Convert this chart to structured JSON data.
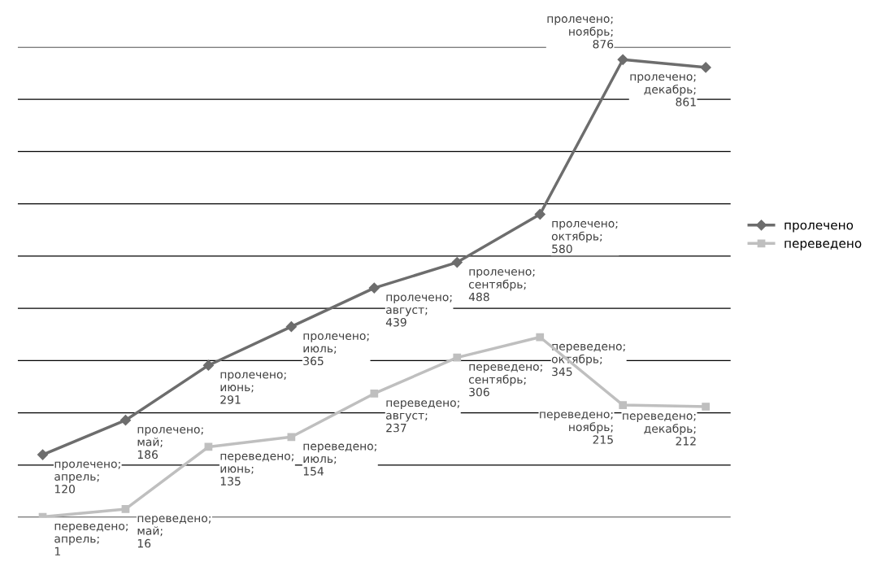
{
  "chart_data": {
    "type": "line",
    "categories": [
      null,
      null,
      null,
      null,
      null,
      null,
      null,
      null,
      null
    ],
    "series": [
      {
        "name": "пролечено",
        "color": "#6d6d6d",
        "marker": "diamond",
        "values": [
          120,
          186,
          291,
          365,
          439,
          488,
          580,
          876,
          861
        ],
        "value_labels": [
          "пролечено; апрель; 120",
          "пролечено; май; 186",
          "пролечено; июнь; 291",
          "пролечено; июль; 365",
          "пролечено; август; 439",
          "пролечено; сентябрь; 488",
          "пролечено; октябрь; 580",
          "пролечено; ноябрь; 876",
          "пролечено; декабрь; 861"
        ]
      },
      {
        "name": "переведено",
        "color": "#bfbfbf",
        "marker": "square",
        "values": [
          1,
          16,
          135,
          154,
          237,
          306,
          345,
          215,
          212
        ],
        "value_labels": [
          "переведено; апрель; 1",
          "переведено; май; 16",
          "переведено; июнь; 135",
          "переведено; июль; 154",
          "переведено; август; 237",
          "переведено; сентябрь; 306",
          "переведено; октябрь; 345",
          "переведено; ноябрь; 215",
          "переведено; декабрь; 212"
        ]
      }
    ],
    "ylim": [
      0,
      900
    ],
    "yticks": [
      {
        "value": 0,
        "label": null
      },
      {
        "value": 100,
        "label": null
      },
      {
        "value": 200,
        "label": null
      },
      {
        "value": 300,
        "label": null
      },
      {
        "value": 400,
        "label": null
      },
      {
        "value": 500,
        "label": null
      },
      {
        "value": 600,
        "label": null
      },
      {
        "value": 700,
        "label": null
      },
      {
        "value": 800,
        "label": null
      },
      {
        "value": 900,
        "label": null
      }
    ],
    "grid": "y",
    "legend": "right",
    "line_style": "solid"
  }
}
